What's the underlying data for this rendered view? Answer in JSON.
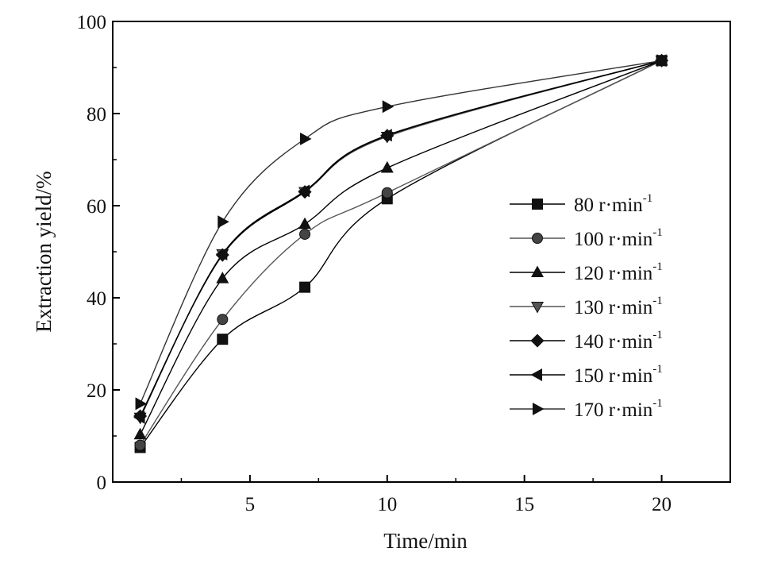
{
  "chart_data": {
    "type": "scatter",
    "title": "",
    "xlabel": "Time/min",
    "ylabel": "Extraction yield/%",
    "xlim": [
      0,
      22.5
    ],
    "ylim": [
      0,
      100
    ],
    "x_ticks": [
      5,
      10,
      15,
      20
    ],
    "x_tick_labels": [
      "5",
      "10",
      "15",
      "20"
    ],
    "y_ticks": [
      0,
      20,
      40,
      60,
      80,
      100
    ],
    "y_tick_labels": [
      "0",
      "20",
      "40",
      "60",
      "80",
      "100"
    ],
    "grid": false,
    "legend_position": "right",
    "x": [
      1,
      4,
      7,
      10,
      20
    ],
    "series": [
      {
        "name": "80 r·min",
        "unit_exp": "-1",
        "marker": "square",
        "line_color": "#000000",
        "values": [
          7.5,
          31.0,
          42.3,
          61.5,
          91.5
        ]
      },
      {
        "name": "100 r·min",
        "unit_exp": "-1",
        "marker": "circle",
        "line_color": "#555555",
        "values": [
          8.0,
          35.3,
          53.8,
          62.8,
          91.5
        ]
      },
      {
        "name": "120 r·min",
        "unit_exp": "-1",
        "marker": "triangle-up",
        "line_color": "#000000",
        "values": [
          10.3,
          44.2,
          56.0,
          68.2,
          91.5
        ]
      },
      {
        "name": "130 r·min",
        "unit_exp": "-1",
        "marker": "triangle-down",
        "line_color": "#555555",
        "values": [
          14.0,
          49.5,
          63.0,
          75.0,
          91.5
        ]
      },
      {
        "name": "140 r·min",
        "unit_exp": "-1",
        "marker": "diamond",
        "line_color": "#000000",
        "values": [
          14.3,
          49.3,
          63.0,
          75.2,
          91.5
        ]
      },
      {
        "name": "150 r·min",
        "unit_exp": "-1",
        "marker": "triangle-left",
        "line_color": "#000000",
        "values": [
          14.0,
          49.5,
          63.2,
          75.3,
          91.5
        ]
      },
      {
        "name": "170 r·min",
        "unit_exp": "-1",
        "marker": "triangle-right",
        "line_color": "#333333",
        "values": [
          17.0,
          56.5,
          74.5,
          81.5,
          91.5
        ]
      }
    ]
  }
}
